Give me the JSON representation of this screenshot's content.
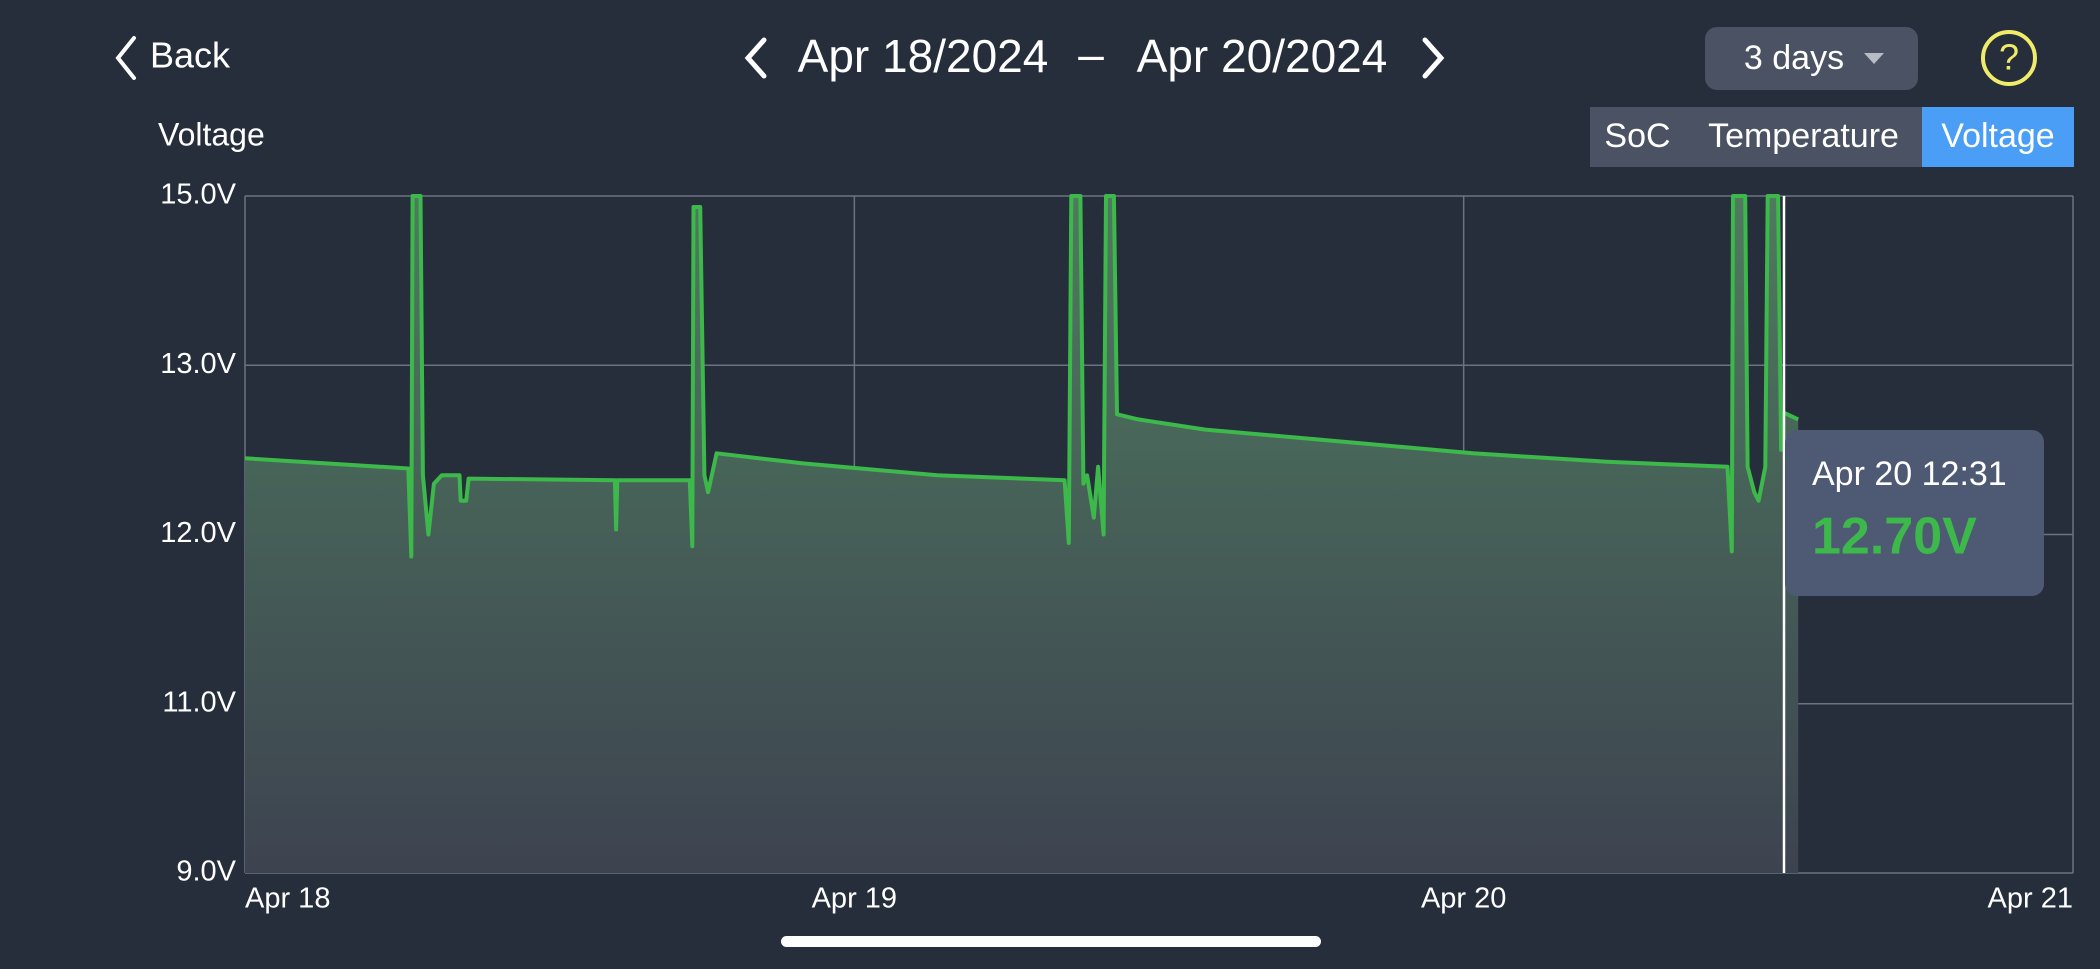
{
  "header": {
    "back": "Back",
    "start_date": "Apr 18/2024",
    "separator": "–",
    "end_date": "Apr 20/2024",
    "range": "3 days",
    "help": "?"
  },
  "tabs": [
    {
      "label": "SoC",
      "active": false
    },
    {
      "label": "Temperature",
      "active": false
    },
    {
      "label": "Voltage",
      "active": true
    }
  ],
  "chart_data": {
    "type": "line",
    "y_label": "Voltage",
    "color": "#3cb94a",
    "grid": true,
    "x": [
      0,
      0.268,
      0.273,
      0.275,
      0.288,
      0.292,
      0.301,
      0.31,
      0.323,
      0.352,
      0.354,
      0.363,
      0.367,
      0.607,
      0.609,
      0.611,
      0.73,
      0.734,
      0.736,
      0.747,
      0.754,
      0.76,
      0.774,
      0.916,
      1.136,
      1.345,
      1.352,
      1.356,
      1.371,
      1.376,
      1.382,
      1.393,
      1.4,
      1.409,
      1.413,
      1.426,
      1.431,
      1.466,
      1.576,
      1.796,
      2.015,
      2.235,
      2.433,
      2.44,
      2.442,
      2.462,
      2.466,
      2.477,
      2.484,
      2.495,
      2.499,
      2.516,
      2.521,
      2.525,
      2.549
    ],
    "values": [
      12.45,
      12.39,
      11.87,
      15.0,
      15.0,
      12.35,
      12.0,
      12.3,
      12.35,
      12.35,
      12.2,
      12.2,
      12.33,
      12.32,
      12.03,
      12.32,
      12.32,
      11.93,
      14.87,
      14.87,
      12.35,
      12.25,
      12.48,
      12.42,
      12.35,
      12.32,
      11.95,
      15.0,
      15.0,
      12.3,
      12.35,
      12.1,
      12.4,
      12.0,
      15.0,
      15.0,
      12.71,
      12.68,
      12.62,
      12.55,
      12.48,
      12.43,
      12.4,
      11.9,
      15.0,
      15.0,
      12.4,
      12.25,
      12.2,
      12.4,
      15.0,
      15.0,
      12.5,
      12.72,
      12.68
    ],
    "xlim": [
      0,
      3
    ],
    "xticks": [
      {
        "value": 0,
        "label": "Apr 18"
      },
      {
        "value": 1,
        "label": "Apr 19"
      },
      {
        "value": 2,
        "label": "Apr 20"
      },
      {
        "value": 3,
        "label": "Apr 21"
      }
    ],
    "ylim": [
      9,
      15
    ],
    "yticks": [
      {
        "value": 9,
        "label": "9.0V"
      },
      {
        "value": 11,
        "label": "11.0V"
      },
      {
        "value": 12,
        "label": "12.0V"
      },
      {
        "value": 13,
        "label": "13.0V"
      },
      {
        "value": 15,
        "label": "15.0V"
      }
    ]
  },
  "tooltip": {
    "time": "Apr 20 12:31",
    "value": "12.70V"
  }
}
